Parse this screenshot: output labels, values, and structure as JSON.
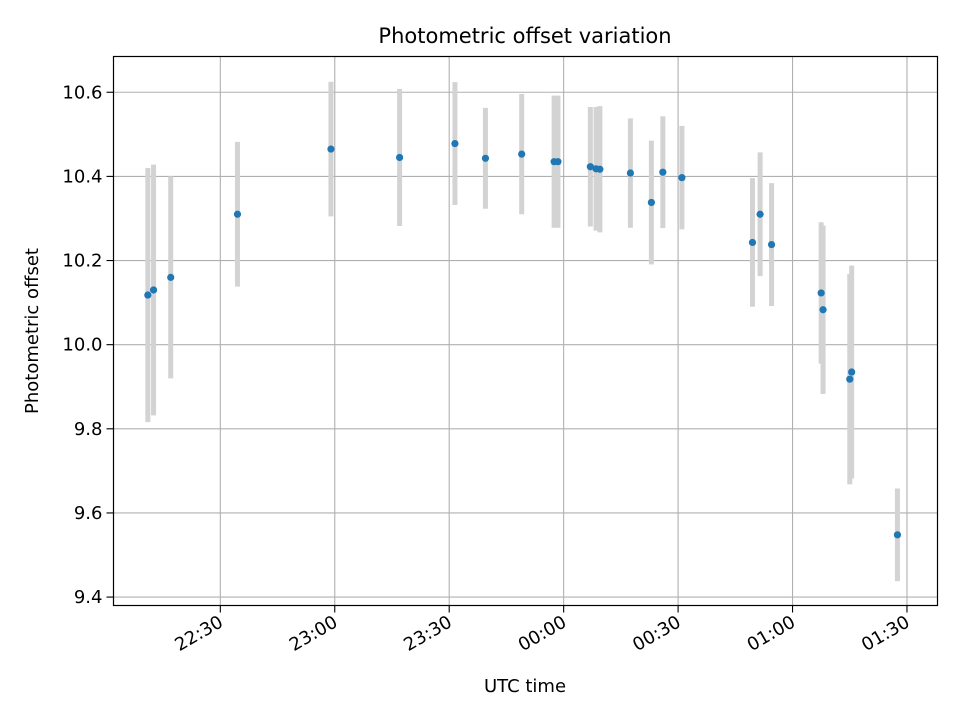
{
  "chart_data": {
    "type": "scatter",
    "title": "Photometric offset variation",
    "xlabel": "UTC time",
    "ylabel": "Photometric offset",
    "xlim_minutes": [
      1322,
      1538
    ],
    "ylim": [
      9.38,
      10.685
    ],
    "x_ticks": [
      {
        "label": "22:30",
        "value": 1350
      },
      {
        "label": "23:00",
        "value": 1380
      },
      {
        "label": "23:30",
        "value": 1410
      },
      {
        "label": "00:00",
        "value": 1440
      },
      {
        "label": "00:30",
        "value": 1470
      },
      {
        "label": "01:00",
        "value": 1500
      },
      {
        "label": "01:30",
        "value": 1530
      }
    ],
    "y_ticks": [
      {
        "label": "9.4",
        "value": 9.4
      },
      {
        "label": "9.6",
        "value": 9.6
      },
      {
        "label": "9.8",
        "value": 9.8
      },
      {
        "label": "10.0",
        "value": 10.0
      },
      {
        "label": "10.2",
        "value": 10.2
      },
      {
        "label": "10.4",
        "value": 10.4
      },
      {
        "label": "10.6",
        "value": 10.6
      }
    ],
    "grid": true,
    "marker_color": "#1f77b4",
    "errorbar_color": "#d3d3d3",
    "series": [
      {
        "name": "offset",
        "points": [
          {
            "t": 1331.0,
            "y": 10.118,
            "err": 0.302
          },
          {
            "t": 1332.5,
            "y": 10.13,
            "err": 0.298
          },
          {
            "t": 1337.0,
            "y": 10.16,
            "err": 0.24
          },
          {
            "t": 1354.5,
            "y": 10.31,
            "err": 0.172
          },
          {
            "t": 1379.0,
            "y": 10.465,
            "err": 0.16
          },
          {
            "t": 1397.0,
            "y": 10.445,
            "err": 0.163
          },
          {
            "t": 1411.5,
            "y": 10.478,
            "err": 0.146
          },
          {
            "t": 1419.5,
            "y": 10.443,
            "err": 0.12
          },
          {
            "t": 1429.0,
            "y": 10.453,
            "err": 0.143
          },
          {
            "t": 1437.5,
            "y": 10.435,
            "err": 0.157
          },
          {
            "t": 1438.5,
            "y": 10.435,
            "err": 0.157
          },
          {
            "t": 1447.0,
            "y": 10.423,
            "err": 0.142
          },
          {
            "t": 1448.5,
            "y": 10.418,
            "err": 0.147
          },
          {
            "t": 1449.5,
            "y": 10.417,
            "err": 0.15
          },
          {
            "t": 1457.5,
            "y": 10.408,
            "err": 0.13
          },
          {
            "t": 1463.0,
            "y": 10.338,
            "err": 0.147
          },
          {
            "t": 1466.0,
            "y": 10.41,
            "err": 0.133
          },
          {
            "t": 1471.0,
            "y": 10.397,
            "err": 0.123
          },
          {
            "t": 1489.5,
            "y": 10.243,
            "err": 0.153
          },
          {
            "t": 1491.5,
            "y": 10.31,
            "err": 0.147
          },
          {
            "t": 1494.5,
            "y": 10.238,
            "err": 0.146
          },
          {
            "t": 1507.5,
            "y": 10.123,
            "err": 0.168
          },
          {
            "t": 1508.0,
            "y": 10.083,
            "err": 0.2
          },
          {
            "t": 1515.0,
            "y": 9.918,
            "err": 0.25
          },
          {
            "t": 1515.5,
            "y": 9.935,
            "err": 0.253
          },
          {
            "t": 1527.5,
            "y": 9.548,
            "err": 0.11
          }
        ]
      }
    ]
  }
}
